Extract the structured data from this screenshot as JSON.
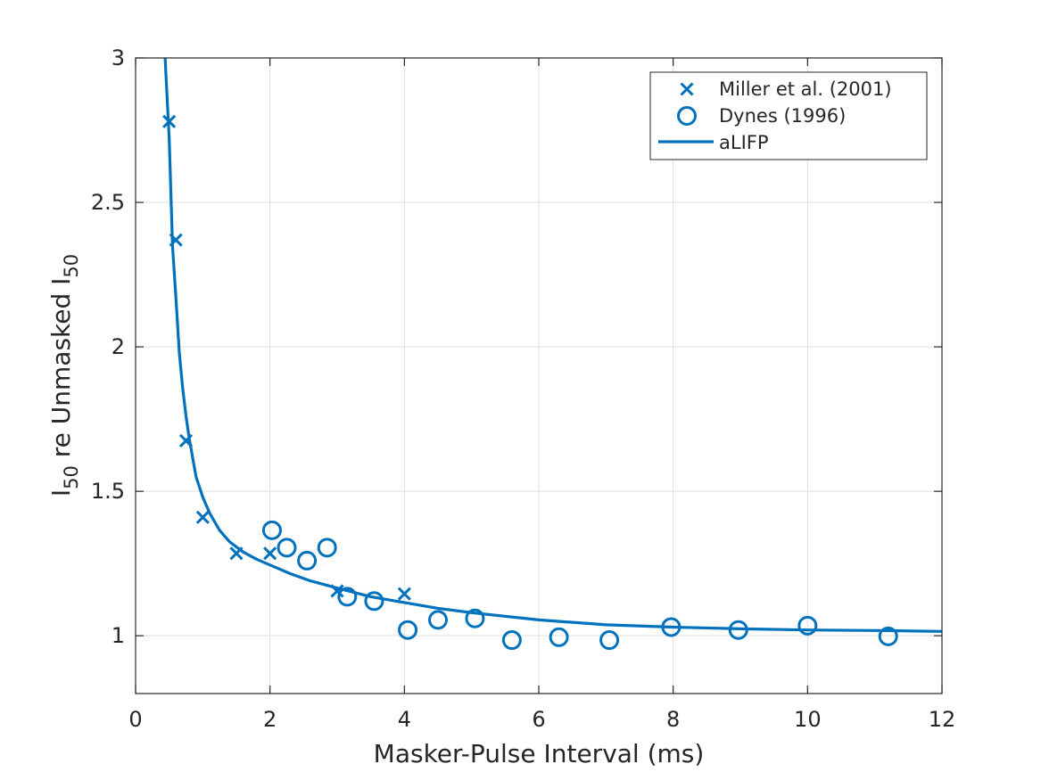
{
  "chart_data": {
    "type": "scatter",
    "title": "",
    "xlabel": "Masker-Pulse Interval (ms)",
    "ylabel": {
      "base": "I",
      "sub1": "50",
      "middle": " re Unmasked I",
      "sub2": "50"
    },
    "xlim": [
      0,
      12
    ],
    "ylim": [
      0.8,
      3
    ],
    "grid": true,
    "xticks": [
      0,
      2,
      4,
      6,
      8,
      10,
      12
    ],
    "xtick_labels": [
      "0",
      "2",
      "4",
      "6",
      "8",
      "10",
      "12"
    ],
    "yticks": [
      1,
      1.5,
      2,
      2.5,
      3
    ],
    "ytick_labels": [
      "1",
      "1.5",
      "2",
      "2.5",
      "3"
    ],
    "legend_position": "top-right",
    "color": "#0072BD",
    "series": [
      {
        "name": "Miller et al. (2001)",
        "marker": "x",
        "x": [
          0.5,
          0.6,
          0.75,
          1.0,
          1.5,
          2.0,
          3.0,
          4.0
        ],
        "y": [
          2.78,
          2.37,
          1.675,
          1.41,
          1.285,
          1.285,
          1.155,
          1.145
        ]
      },
      {
        "name": "Dynes (1996)",
        "marker": "o",
        "x": [
          2.03,
          2.25,
          2.55,
          2.85,
          3.15,
          3.55,
          4.05,
          4.5,
          5.05,
          5.6,
          6.3,
          7.05,
          7.97,
          8.97,
          10.0,
          11.2
        ],
        "y": [
          1.365,
          1.305,
          1.26,
          1.305,
          1.135,
          1.12,
          1.02,
          1.055,
          1.06,
          0.985,
          0.995,
          0.985,
          1.03,
          1.02,
          1.035,
          0.998
        ]
      },
      {
        "name": "aLIFP",
        "marker": "line",
        "x": [
          0.43,
          0.45,
          0.5,
          0.55,
          0.6,
          0.65,
          0.7,
          0.75,
          0.8,
          0.9,
          1.0,
          1.1,
          1.25,
          1.4,
          1.6,
          1.8,
          2.0,
          2.3,
          2.6,
          3.0,
          3.5,
          4.0,
          4.5,
          5.0,
          6.0,
          7.0,
          8.0,
          9.0,
          10.0,
          11.0,
          12.0
        ],
        "y": [
          3.05,
          2.95,
          2.72,
          2.35,
          2.17,
          1.98,
          1.86,
          1.76,
          1.68,
          1.55,
          1.48,
          1.425,
          1.365,
          1.325,
          1.29,
          1.265,
          1.245,
          1.215,
          1.19,
          1.165,
          1.135,
          1.115,
          1.095,
          1.08,
          1.055,
          1.038,
          1.03,
          1.024,
          1.02,
          1.018,
          1.015
        ]
      }
    ]
  }
}
